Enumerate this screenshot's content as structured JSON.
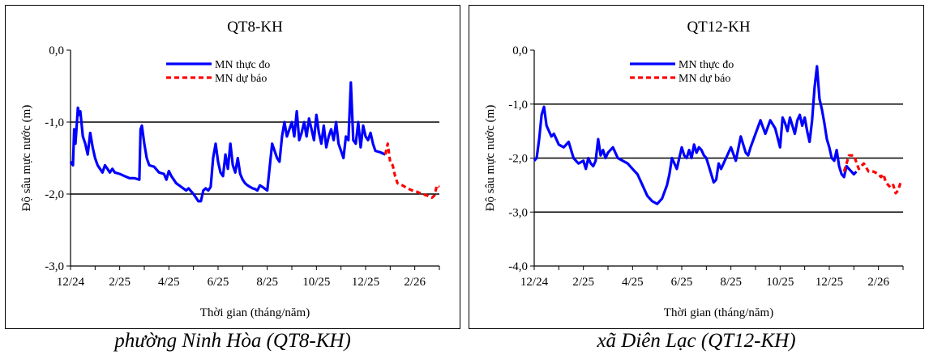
{
  "chart_data": [
    {
      "type": "line",
      "title": "QT8-KH",
      "xlabel": "Thời gian (tháng/năm)",
      "ylabel": "Độ sâu mực nước (m)",
      "caption": "phường Ninh Hòa (QT8-KH)",
      "ylim": [
        -3.0,
        0.0
      ],
      "yticks": [
        "0,0",
        "-1,0",
        "-2,0",
        "-3,0"
      ],
      "ytick_values": [
        0,
        -1,
        -2,
        -3
      ],
      "gridlines": [
        -1,
        -2
      ],
      "xlim": [
        0,
        15
      ],
      "xticks": [
        "12/24",
        "2/25",
        "4/25",
        "6/25",
        "8/25",
        "10/25",
        "12/25",
        "2/26"
      ],
      "legend_position": "top-center",
      "colors": {
        "observed": "#0000ff",
        "forecast": "#ff0000"
      },
      "series": [
        {
          "name": "MN thực đo",
          "style": "solid",
          "x": [
            0,
            0.1,
            0.15,
            0.2,
            0.3,
            0.35,
            0.4,
            0.5,
            0.6,
            0.7,
            0.8,
            0.85,
            0.9,
            1.0,
            1.1,
            1.2,
            1.3,
            1.4,
            1.5,
            1.6,
            1.7,
            1.8,
            2.0,
            2.2,
            2.4,
            2.6,
            2.8,
            2.85,
            2.9,
            3.0,
            3.1,
            3.2,
            3.4,
            3.6,
            3.8,
            3.9,
            4.0,
            4.1,
            4.3,
            4.5,
            4.7,
            4.8,
            5.0,
            5.1,
            5.2,
            5.3,
            5.4,
            5.5,
            5.6,
            5.7,
            5.8,
            5.9,
            6.0,
            6.1,
            6.2,
            6.3,
            6.4,
            6.5,
            6.6,
            6.7,
            6.8,
            6.9,
            7.0,
            7.1,
            7.2,
            7.3,
            7.4,
            7.5,
            7.6,
            7.7,
            7.8,
            8.0,
            8.2,
            8.4,
            8.5,
            8.6,
            8.7,
            8.8,
            8.9,
            9.0,
            9.1,
            9.2,
            9.3,
            9.4,
            9.5,
            9.6,
            9.7,
            9.8,
            9.9,
            10.0,
            10.1,
            10.2,
            10.3,
            10.4,
            10.5,
            10.6,
            10.7,
            10.8,
            10.9,
            11.0,
            11.1,
            11.2,
            11.3,
            11.4,
            11.5,
            11.6,
            11.7,
            11.8,
            11.9,
            12.0,
            12.1,
            12.2,
            12.3,
            12.4,
            12.6,
            12.8
          ],
          "y": [
            -1.55,
            -1.6,
            -1.1,
            -1.3,
            -0.8,
            -0.9,
            -0.85,
            -1.2,
            -1.3,
            -1.45,
            -1.15,
            -1.25,
            -1.35,
            -1.5,
            -1.6,
            -1.65,
            -1.7,
            -1.6,
            -1.65,
            -1.7,
            -1.65,
            -1.7,
            -1.72,
            -1.75,
            -1.78,
            -1.78,
            -1.8,
            -1.1,
            -1.05,
            -1.3,
            -1.5,
            -1.6,
            -1.62,
            -1.7,
            -1.72,
            -1.8,
            -1.68,
            -1.75,
            -1.85,
            -1.9,
            -1.95,
            -1.92,
            -2.0,
            -2.05,
            -2.1,
            -2.1,
            -1.95,
            -1.92,
            -1.95,
            -1.9,
            -1.5,
            -1.3,
            -1.55,
            -1.7,
            -1.75,
            -1.45,
            -1.65,
            -1.3,
            -1.6,
            -1.7,
            -1.5,
            -1.72,
            -1.8,
            -1.85,
            -1.88,
            -1.9,
            -1.92,
            -1.93,
            -1.95,
            -1.88,
            -1.9,
            -1.95,
            -1.3,
            -1.5,
            -1.55,
            -1.2,
            -1.0,
            -1.2,
            -1.1,
            -1.0,
            -1.2,
            -0.85,
            -1.25,
            -1.15,
            -1.0,
            -1.2,
            -0.95,
            -1.1,
            -1.25,
            -0.9,
            -1.15,
            -1.3,
            -1.05,
            -1.35,
            -1.2,
            -1.1,
            -1.25,
            -1.0,
            -1.3,
            -1.4,
            -1.5,
            -1.2,
            -1.25,
            -0.45,
            -1.25,
            -1.3,
            -1.0,
            -1.35,
            -1.05,
            -1.2,
            -1.25,
            -1.15,
            -1.3,
            -1.4,
            -1.42,
            -1.45
          ]
        },
        {
          "name": "MN dự báo",
          "style": "dashed",
          "x": [
            12.8,
            12.9,
            13.0,
            13.1,
            13.2,
            13.3,
            13.5,
            13.7,
            13.9,
            14.1,
            14.3,
            14.5,
            14.7,
            14.8,
            14.9,
            15.0
          ],
          "y": [
            -1.45,
            -1.3,
            -1.55,
            -1.6,
            -1.75,
            -1.85,
            -1.88,
            -1.92,
            -1.95,
            -1.97,
            -2.0,
            -2.02,
            -2.05,
            -2.02,
            -1.88,
            -1.9
          ]
        }
      ]
    },
    {
      "type": "line",
      "title": "QT12-KH",
      "xlabel": "Thời gian (tháng/năm)",
      "ylabel": "Độ sâu mực nước (m)",
      "caption": "xã Diên Lạc (QT12-KH)",
      "ylim": [
        -4.0,
        0.0
      ],
      "yticks": [
        "0,0",
        "-1,0",
        "-2,0",
        "-3,0",
        "-4,0"
      ],
      "ytick_values": [
        0,
        -1,
        -2,
        -3,
        -4
      ],
      "gridlines": [
        -1,
        -2,
        -3
      ],
      "xlim": [
        0,
        15
      ],
      "xticks": [
        "12/24",
        "2/25",
        "4/25",
        "6/25",
        "8/25",
        "10/25",
        "12/25",
        "2/26"
      ],
      "legend_position": "top-center",
      "colors": {
        "observed": "#0000ff",
        "forecast": "#ff0000"
      },
      "series": [
        {
          "name": "MN thực đo",
          "style": "solid",
          "x": [
            0,
            0.1,
            0.2,
            0.3,
            0.4,
            0.5,
            0.6,
            0.7,
            0.8,
            1.0,
            1.2,
            1.4,
            1.5,
            1.6,
            1.8,
            2.0,
            2.1,
            2.2,
            2.3,
            2.4,
            2.5,
            2.6,
            2.7,
            2.8,
            2.9,
            3.0,
            3.2,
            3.4,
            3.6,
            3.8,
            4.0,
            4.2,
            4.4,
            4.6,
            4.8,
            5.0,
            5.2,
            5.4,
            5.5,
            5.6,
            5.8,
            6.0,
            6.1,
            6.2,
            6.3,
            6.4,
            6.5,
            6.6,
            6.7,
            6.8,
            6.9,
            7.0,
            7.1,
            7.2,
            7.3,
            7.4,
            7.5,
            7.6,
            7.8,
            8.0,
            8.2,
            8.4,
            8.6,
            8.7,
            8.8,
            9.0,
            9.2,
            9.4,
            9.6,
            9.8,
            10.0,
            10.1,
            10.2,
            10.3,
            10.4,
            10.5,
            10.6,
            10.7,
            10.8,
            10.9,
            11.0,
            11.1,
            11.2,
            11.3,
            11.4,
            11.5,
            11.6,
            11.7,
            11.8,
            11.9,
            12.0,
            12.1,
            12.2,
            12.3,
            12.4,
            12.5,
            12.6,
            12.7,
            12.8,
            12.9,
            13.0,
            13.1
          ],
          "y": [
            -2.05,
            -2.0,
            -1.65,
            -1.2,
            -1.05,
            -1.4,
            -1.5,
            -1.6,
            -1.55,
            -1.75,
            -1.8,
            -1.7,
            -1.85,
            -2.0,
            -2.1,
            -2.05,
            -2.2,
            -2.0,
            -2.1,
            -2.15,
            -2.05,
            -1.65,
            -1.95,
            -1.85,
            -2.0,
            -1.9,
            -1.8,
            -2.0,
            -2.05,
            -2.1,
            -2.2,
            -2.3,
            -2.5,
            -2.7,
            -2.8,
            -2.85,
            -2.75,
            -2.5,
            -2.3,
            -2.0,
            -2.2,
            -1.8,
            -1.95,
            -2.0,
            -1.85,
            -2.0,
            -1.75,
            -1.9,
            -1.8,
            -1.85,
            -1.95,
            -2.0,
            -2.15,
            -2.3,
            -2.45,
            -2.4,
            -2.1,
            -2.2,
            -2.0,
            -1.8,
            -2.05,
            -1.6,
            -1.9,
            -1.95,
            -1.8,
            -1.55,
            -1.3,
            -1.55,
            -1.3,
            -1.45,
            -1.8,
            -1.25,
            -1.35,
            -1.5,
            -1.25,
            -1.4,
            -1.55,
            -1.3,
            -1.2,
            -1.4,
            -1.25,
            -1.5,
            -1.7,
            -1.3,
            -0.7,
            -0.3,
            -0.9,
            -1.1,
            -1.35,
            -1.65,
            -1.8,
            -2.0,
            -2.05,
            -1.85,
            -2.15,
            -2.3,
            -2.35,
            -2.15,
            -2.2,
            -2.25,
            -2.3,
            -2.25
          ]
        },
        {
          "name": "MN dự báo",
          "style": "dashed",
          "x": [
            12.6,
            12.8,
            13.0,
            13.2,
            13.4,
            13.6,
            13.8,
            14.0,
            14.1,
            14.2,
            14.3,
            14.4,
            14.5,
            14.6,
            14.7,
            14.8,
            14.9,
            15.0
          ],
          "y": [
            -2.25,
            -1.95,
            -1.95,
            -2.2,
            -2.1,
            -2.25,
            -2.25,
            -2.3,
            -2.35,
            -2.3,
            -2.45,
            -2.5,
            -2.55,
            -2.5,
            -2.65,
            -2.6,
            -2.45,
            -2.45
          ]
        }
      ]
    }
  ]
}
